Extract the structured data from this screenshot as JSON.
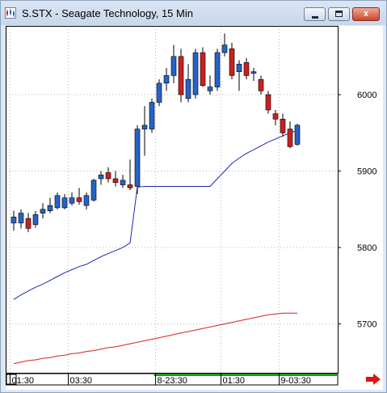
{
  "window": {
    "title": "S.STX - Seagate Technology, 15 Min",
    "icon": "chart-app-icon",
    "buttons": {
      "minimize": "minimize-icon",
      "maximize": "maximize-icon",
      "close": "close-icon"
    },
    "close_glyph": "x"
  },
  "colors": {
    "up": "#2563c9",
    "down": "#cc1f1f",
    "blue_line": "#1a27b8",
    "red_line": "#d42222",
    "grid": "#b8b8b8",
    "time_bar": "#1a9a1a",
    "arrow": "#e11111"
  },
  "chart_data": {
    "type": "candlestick",
    "y_ticks": [
      "6000",
      "5900",
      "5800",
      "5700"
    ],
    "y_tick_values": [
      6000,
      5900,
      5800,
      5700
    ],
    "ylim": [
      5635,
      6090
    ],
    "x_tick_labels": [
      {
        "label": "01:30",
        "index": 0
      },
      {
        "label": "03:30",
        "index": 8
      },
      {
        "label": "8-23:30",
        "index": 20
      },
      {
        "label": "01:30",
        "index": 29
      },
      {
        "label": "9-03:30",
        "index": 37
      }
    ],
    "candles": [
      {
        "o": 5832,
        "h": 5848,
        "l": 5822,
        "c": 5840
      },
      {
        "o": 5832,
        "h": 5850,
        "l": 5825,
        "c": 5845
      },
      {
        "o": 5838,
        "h": 5845,
        "l": 5820,
        "c": 5825
      },
      {
        "o": 5830,
        "h": 5848,
        "l": 5826,
        "c": 5843
      },
      {
        "o": 5845,
        "h": 5858,
        "l": 5838,
        "c": 5850
      },
      {
        "o": 5848,
        "h": 5865,
        "l": 5845,
        "c": 5855
      },
      {
        "o": 5852,
        "h": 5872,
        "l": 5850,
        "c": 5868
      },
      {
        "o": 5852,
        "h": 5870,
        "l": 5850,
        "c": 5865
      },
      {
        "o": 5858,
        "h": 5872,
        "l": 5855,
        "c": 5865
      },
      {
        "o": 5865,
        "h": 5878,
        "l": 5856,
        "c": 5860
      },
      {
        "o": 5855,
        "h": 5872,
        "l": 5850,
        "c": 5868
      },
      {
        "o": 5862,
        "h": 5890,
        "l": 5860,
        "c": 5888
      },
      {
        "o": 5890,
        "h": 5900,
        "l": 5882,
        "c": 5895
      },
      {
        "o": 5898,
        "h": 5905,
        "l": 5885,
        "c": 5890
      },
      {
        "o": 5890,
        "h": 5900,
        "l": 5880,
        "c": 5885
      },
      {
        "o": 5882,
        "h": 5895,
        "l": 5878,
        "c": 5888
      },
      {
        "o": 5882,
        "h": 5915,
        "l": 5875,
        "c": 5878
      },
      {
        "o": 5880,
        "h": 5960,
        "l": 5870,
        "c": 5955
      },
      {
        "o": 5955,
        "h": 5985,
        "l": 5920,
        "c": 5960
      },
      {
        "o": 5955,
        "h": 5995,
        "l": 5950,
        "c": 5990
      },
      {
        "o": 5990,
        "h": 6020,
        "l": 5985,
        "c": 6015
      },
      {
        "o": 6015,
        "h": 6035,
        "l": 6005,
        "c": 6025
      },
      {
        "o": 6025,
        "h": 6065,
        "l": 6015,
        "c": 6050
      },
      {
        "o": 6050,
        "h": 6060,
        "l": 5990,
        "c": 6000
      },
      {
        "o": 5995,
        "h": 6040,
        "l": 5990,
        "c": 6020
      },
      {
        "o": 6000,
        "h": 6060,
        "l": 5995,
        "c": 6055
      },
      {
        "o": 6055,
        "h": 6062,
        "l": 6010,
        "c": 6012
      },
      {
        "o": 6005,
        "h": 6025,
        "l": 6000,
        "c": 6010
      },
      {
        "o": 6010,
        "h": 6060,
        "l": 6005,
        "c": 6055
      },
      {
        "o": 6055,
        "h": 6080,
        "l": 6050,
        "c": 6065
      },
      {
        "o": 6060,
        "h": 6068,
        "l": 6020,
        "c": 6025
      },
      {
        "o": 6030,
        "h": 6045,
        "l": 6005,
        "c": 6040
      },
      {
        "o": 6042,
        "h": 6048,
        "l": 6020,
        "c": 6025
      },
      {
        "o": 6028,
        "h": 6035,
        "l": 6018,
        "c": 6030
      },
      {
        "o": 6020,
        "h": 6025,
        "l": 6000,
        "c": 6005
      },
      {
        "o": 6000,
        "h": 6005,
        "l": 5975,
        "c": 5980
      },
      {
        "o": 5975,
        "h": 5980,
        "l": 5960,
        "c": 5968
      },
      {
        "o": 5968,
        "h": 5975,
        "l": 5945,
        "c": 5950
      },
      {
        "o": 5955,
        "h": 5965,
        "l": 5930,
        "c": 5932
      },
      {
        "o": 5935,
        "h": 5962,
        "l": 5933,
        "c": 5960
      }
    ],
    "series": [
      {
        "values": [
          5732,
          5738,
          5743,
          5748,
          5752,
          5757,
          5762,
          5767,
          5771,
          5775,
          5778,
          5783,
          5788,
          5792,
          5796,
          5800,
          5806,
          5879,
          5880,
          5880,
          5880,
          5880,
          5880,
          5880,
          5880,
          5880,
          5880,
          5880,
          5890,
          5900,
          5910,
          5917,
          5923,
          5928,
          5933,
          5938,
          5942,
          5946,
          5950,
          5953
        ]
      },
      {
        "values": [
          5648,
          5650,
          5652,
          5653,
          5655,
          5656,
          5658,
          5659,
          5661,
          5662,
          5664,
          5665,
          5667,
          5669,
          5670,
          5672,
          5674,
          5676,
          5678,
          5680,
          5682,
          5684,
          5686,
          5688,
          5690,
          5692,
          5694,
          5696,
          5698,
          5700,
          5702,
          5704,
          5706,
          5708,
          5710,
          5712,
          5713,
          5714,
          5714,
          5714
        ]
      }
    ]
  }
}
